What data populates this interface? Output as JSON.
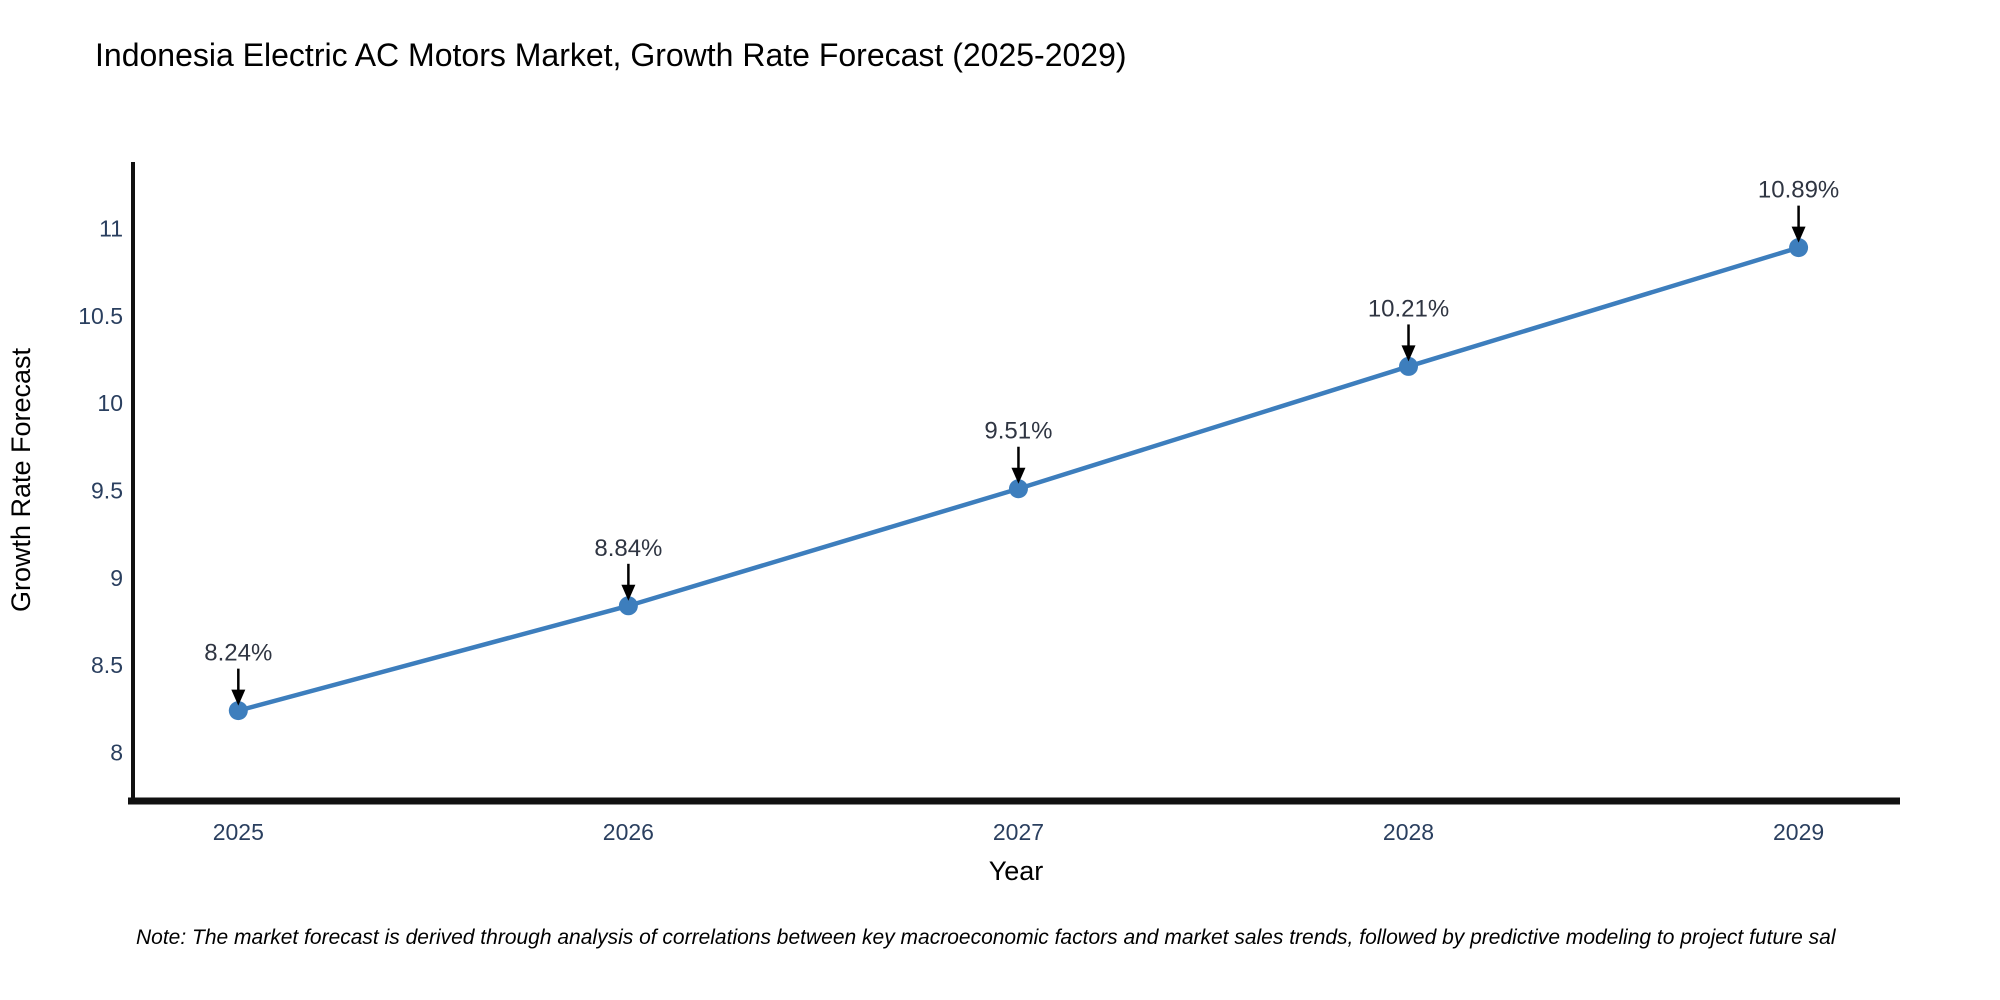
{
  "page": {
    "background": "#ffffff"
  },
  "footnote": "Note: The market forecast is derived through analysis of correlations between key macroeconomic factors and market sales trends, followed by predictive modeling to project future sal",
  "chart_data": {
    "type": "line",
    "title": "Indonesia Electric AC Motors Market, Growth Rate Forecast (2025-2029)",
    "xlabel": "Year",
    "ylabel": "Growth Rate Forecast",
    "x": [
      2025,
      2026,
      2027,
      2028,
      2029
    ],
    "values": [
      8.24,
      8.84,
      9.51,
      10.21,
      10.89
    ],
    "point_labels": [
      "8.24%",
      "8.84%",
      "9.51%",
      "10.21%",
      "10.89%"
    ],
    "xticks": [
      2025,
      2026,
      2027,
      2028,
      2029
    ],
    "yticks": [
      8,
      8.5,
      9,
      9.5,
      10,
      10.5,
      11
    ],
    "xlim": [
      2024.73,
      2029.26
    ],
    "ylim": [
      7.74,
      11.38
    ],
    "grid": false,
    "legend": "none",
    "annotation_style": "down-arrow",
    "colors": {
      "line": "#3d7ebd",
      "marker": "#3d7ebd",
      "arrow": "#000000",
      "axis_text": "#2a3f5f",
      "annotation_text": "#2f3542",
      "spine": "#111111",
      "background": "#ffffff"
    }
  }
}
